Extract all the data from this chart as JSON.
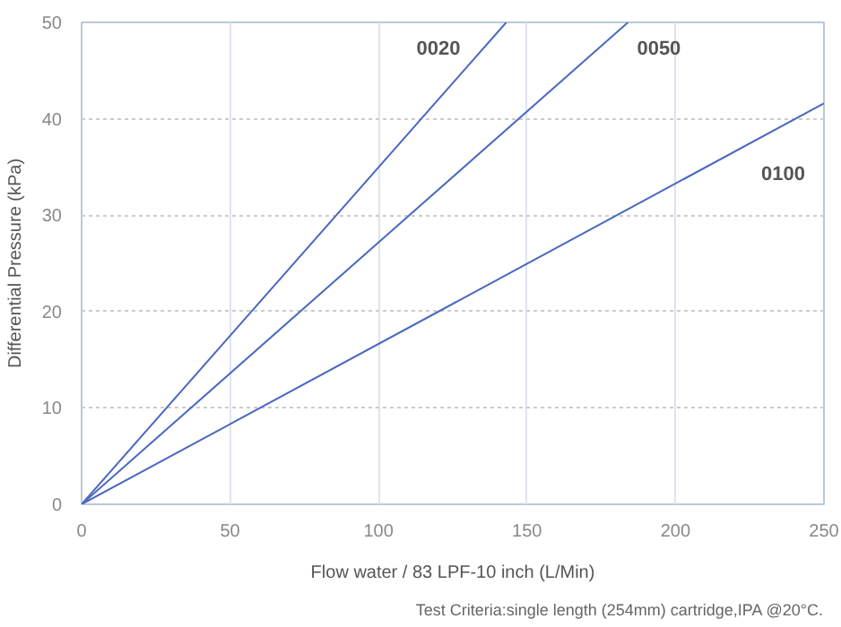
{
  "chart_data": {
    "type": "line",
    "xlabel": "Flow water / 83 LPF-10 inch (L/Min)",
    "ylabel": "Differential Pressure (kPa)",
    "annotations": [
      "Test Criteria:single length (254mm) cartridge,IPA @20°C."
    ],
    "series": [
      {
        "name": "0020",
        "color": "#4a68c0",
        "x": [
          0,
          143
        ],
        "values": [
          0,
          50
        ]
      },
      {
        "name": "0050",
        "color": "#4a68c0",
        "x": [
          0,
          184
        ],
        "values": [
          0,
          50
        ]
      },
      {
        "name": "0100",
        "color": "#4a68c0",
        "x": [
          0,
          250
        ],
        "values": [
          0,
          41.6
        ]
      }
    ],
    "xlim": [
      0,
      250
    ],
    "ylim": [
      0,
      50
    ],
    "xticks": [
      0,
      50,
      100,
      150,
      200,
      250
    ],
    "yticks": [
      0,
      10,
      20,
      30,
      40,
      50
    ],
    "grid": true,
    "marker": "none",
    "line_style": "solid"
  }
}
